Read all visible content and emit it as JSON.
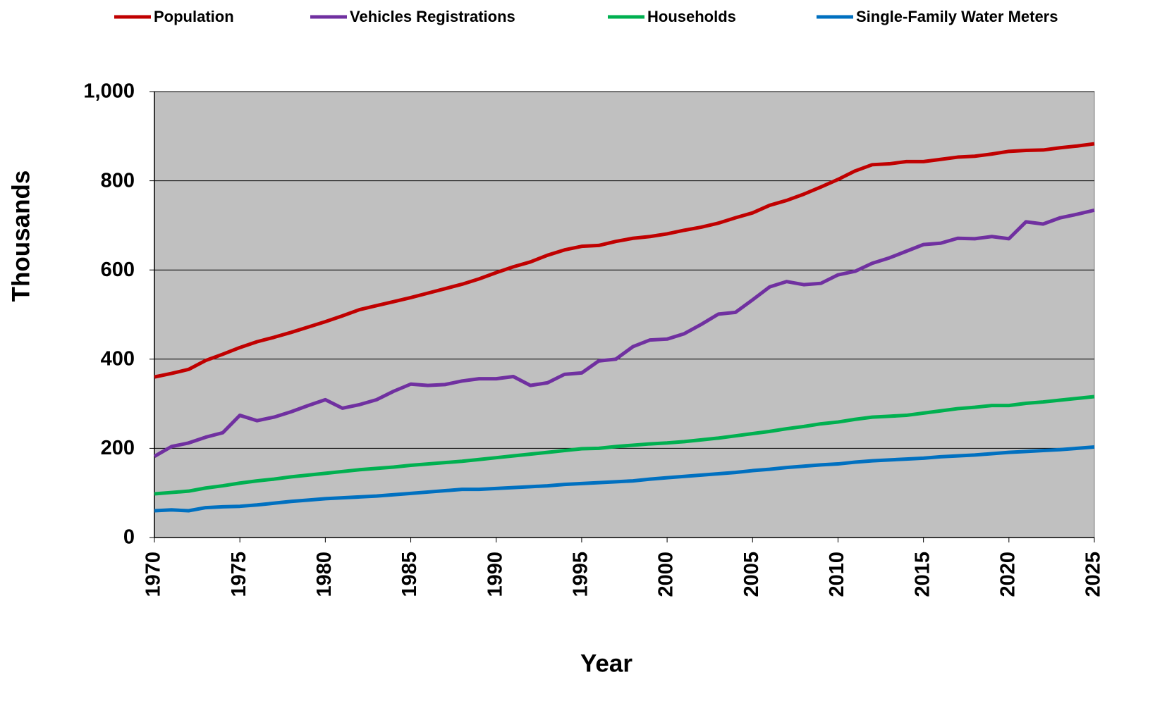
{
  "chart_data": {
    "type": "line",
    "x_label": "Year",
    "y_label": "Thousands",
    "x": [
      1970,
      1971,
      1972,
      1973,
      1974,
      1975,
      1976,
      1977,
      1978,
      1979,
      1980,
      1981,
      1982,
      1983,
      1984,
      1985,
      1986,
      1987,
      1988,
      1989,
      1990,
      1991,
      1992,
      1993,
      1994,
      1995,
      1996,
      1997,
      1998,
      1999,
      2000,
      2001,
      2002,
      2003,
      2004,
      2005,
      2006,
      2007,
      2008,
      2009,
      2010,
      2011,
      2012,
      2013,
      2014,
      2015,
      2016,
      2017,
      2018,
      2019,
      2020,
      2021,
      2022,
      2023,
      2024,
      2025
    ],
    "series": [
      {
        "name": "Population",
        "color": "#c00000",
        "values": [
          360,
          368,
          377,
          397,
          411,
          426,
          439,
          449,
          460,
          472,
          484,
          497,
          511,
          520,
          529,
          538,
          548,
          558,
          568,
          580,
          594,
          607,
          618,
          633,
          645,
          653,
          655,
          664,
          671,
          675,
          681,
          689,
          696,
          705,
          717,
          728,
          745,
          756,
          770,
          786,
          803,
          822,
          836,
          838,
          843,
          843,
          848,
          853,
          855,
          860,
          866,
          868,
          869,
          874,
          878,
          883
        ]
      },
      {
        "name": "Vehicles Registrations",
        "color": "#7030a0",
        "values": [
          182,
          204,
          212,
          225,
          235,
          274,
          262,
          270,
          282,
          296,
          309,
          290,
          298,
          309,
          328,
          344,
          341,
          343,
          351,
          356,
          356,
          361,
          341,
          347,
          366,
          369,
          396,
          400,
          428,
          443,
          445,
          457,
          478,
          501,
          505,
          533,
          562,
          574,
          567,
          570,
          589,
          597,
          615,
          627,
          642,
          657,
          660,
          671,
          670,
          675,
          670,
          708,
          703,
          717,
          725,
          734
        ]
      },
      {
        "name": "Households",
        "color": "#00b050",
        "values": [
          98,
          101,
          104,
          111,
          116,
          122,
          127,
          131,
          136,
          140,
          144,
          148,
          152,
          155,
          158,
          162,
          165,
          168,
          171,
          175,
          179,
          183,
          187,
          191,
          195,
          199,
          200,
          204,
          207,
          210,
          212,
          215,
          219,
          223,
          228,
          233,
          238,
          244,
          249,
          255,
          259,
          265,
          270,
          272,
          274,
          279,
          284,
          289,
          292,
          296,
          296,
          301,
          304,
          308,
          312,
          316
        ]
      },
      {
        "name": "Single-Family Water Meters",
        "color": "#0070c0",
        "values": [
          60,
          62,
          60,
          67,
          69,
          70,
          73,
          77,
          81,
          84,
          87,
          89,
          91,
          93,
          96,
          99,
          102,
          105,
          108,
          108,
          110,
          112,
          114,
          116,
          119,
          121,
          123,
          125,
          127,
          131,
          134,
          137,
          140,
          143,
          146,
          150,
          153,
          157,
          160,
          163,
          165,
          169,
          172,
          174,
          176,
          178,
          181,
          183,
          185,
          188,
          191,
          193,
          195,
          197,
          200,
          203
        ]
      }
    ],
    "xlim": [
      1970,
      2025
    ],
    "xticks": [
      1970,
      1975,
      1980,
      1985,
      1990,
      1995,
      2000,
      2005,
      2010,
      2015,
      2020,
      2025
    ],
    "ylim": [
      0,
      1000
    ],
    "yticks": [
      0,
      200,
      400,
      600,
      800,
      {
        "value": 1000,
        "label": "1,000"
      }
    ],
    "grid": true,
    "plot_background": "#c0c0c0",
    "legend": "top"
  }
}
